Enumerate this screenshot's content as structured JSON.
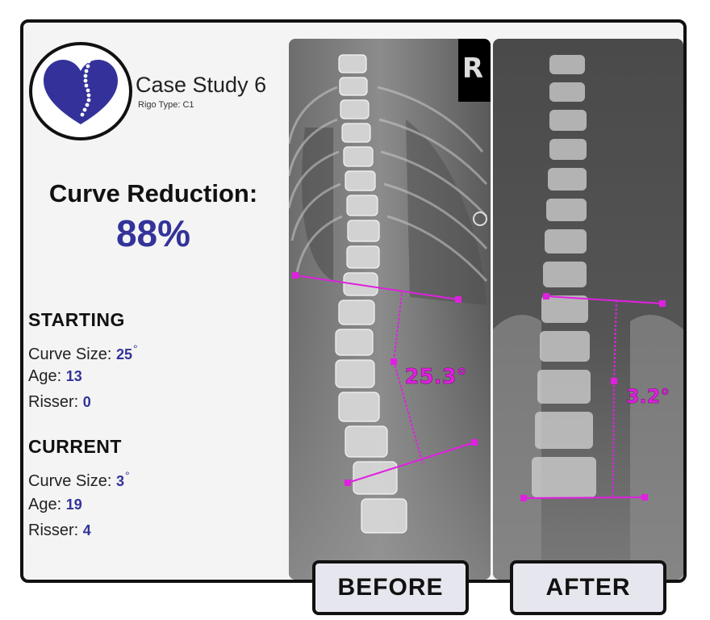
{
  "header": {
    "title": "Case Study 6",
    "subtitle": "Rigo Type: C1"
  },
  "summary": {
    "reduction_label": "Curve Reduction:",
    "reduction_value": "88%"
  },
  "starting": {
    "heading": "STARTING",
    "curve_label": "Curve Size: ",
    "curve_value": "25",
    "degree_symbol": "°",
    "age_label": "Age: ",
    "age_value": "13",
    "risser_label": "Risser: ",
    "risser_value": "0"
  },
  "current": {
    "heading": "CURRENT",
    "curve_label": "Curve Size: ",
    "curve_value": "3",
    "degree_symbol": "°",
    "age_label": "Age: ",
    "age_value": "19",
    "risser_label": "Risser: ",
    "risser_value": "4"
  },
  "images": {
    "before_angle": "25.3°",
    "after_angle": "3.2°",
    "before_label": "BEFORE",
    "after_label": "AFTER"
  },
  "colors": {
    "accent": "#33339a",
    "measure": "#e020e0",
    "frame": "#111111"
  },
  "icons": {
    "logo": "heart-spine-logo"
  }
}
